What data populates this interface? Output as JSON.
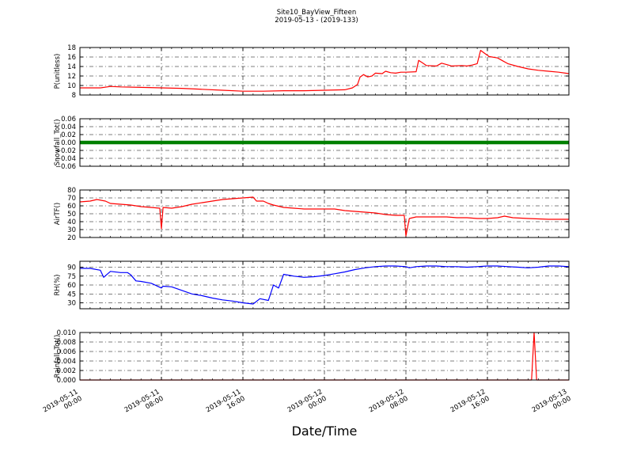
{
  "figure": {
    "title": "Site10_BayView_Fifteen",
    "subtitle": "2019-05-13 - (2019-133)",
    "xlabel": "Date/Time"
  },
  "chart_data": {
    "type": "line",
    "x_axis": {
      "kind": "datetime",
      "range": [
        "2019-05-11 00:00",
        "2019-05-13 00:00"
      ],
      "ticks": [
        "2019-05-11 00:00",
        "2019-05-11 08:00",
        "2019-05-11 16:00",
        "2019-05-12 00:00",
        "2019-05-12 08:00",
        "2019-05-12 16:00",
        "2019-05-13 00:00"
      ],
      "tick_labels": [
        [
          "2019-05-11",
          "00:00"
        ],
        [
          "2019-05-11",
          "08:00"
        ],
        [
          "2019-05-11",
          "16:00"
        ],
        [
          "2019-05-12",
          "00:00"
        ],
        [
          "2019-05-12",
          "08:00"
        ],
        [
          "2019-05-12",
          "16:00"
        ],
        [
          "2019-05-13",
          "00:00"
        ]
      ]
    },
    "grid": true,
    "panels": [
      {
        "ylabel": "P(unitless)",
        "ylim": [
          8,
          18
        ],
        "yticks": [
          "8",
          "10",
          "12",
          "14",
          "16",
          "18"
        ],
        "color": "#ff0000",
        "style": "line",
        "points": [
          [
            "2019-05-11 00:00",
            9.5
          ],
          [
            "2019-05-11 02:00",
            9.5
          ],
          [
            "2019-05-11 03:00",
            9.8
          ],
          [
            "2019-05-11 04:00",
            9.7
          ],
          [
            "2019-05-11 06:00",
            9.6
          ],
          [
            "2019-05-11 08:00",
            9.5
          ],
          [
            "2019-05-11 10:00",
            9.4
          ],
          [
            "2019-05-11 12:00",
            9.2
          ],
          [
            "2019-05-11 14:00",
            9.0
          ],
          [
            "2019-05-11 16:00",
            8.8
          ],
          [
            "2019-05-11 18:00",
            8.8
          ],
          [
            "2019-05-11 20:00",
            8.9
          ],
          [
            "2019-05-11 22:00",
            8.9
          ],
          [
            "2019-05-12 00:00",
            9.0
          ],
          [
            "2019-05-12 02:00",
            9.1
          ],
          [
            "2019-05-12 02:45",
            9.5
          ],
          [
            "2019-05-12 03:15",
            10.2
          ],
          [
            "2019-05-12 03:30",
            11.8
          ],
          [
            "2019-05-12 03:50",
            12.3
          ],
          [
            "2019-05-12 04:15",
            11.8
          ],
          [
            "2019-05-12 04:40",
            12.0
          ],
          [
            "2019-05-12 05:00",
            12.6
          ],
          [
            "2019-05-12 05:40",
            12.5
          ],
          [
            "2019-05-12 06:00",
            13.0
          ],
          [
            "2019-05-12 06:30",
            12.7
          ],
          [
            "2019-05-12 07:00",
            12.6
          ],
          [
            "2019-05-12 07:30",
            12.8
          ],
          [
            "2019-05-12 08:00",
            12.8
          ],
          [
            "2019-05-12 09:00",
            12.9
          ],
          [
            "2019-05-12 09:15",
            15.3
          ],
          [
            "2019-05-12 09:40",
            14.7
          ],
          [
            "2019-05-12 10:00",
            14.2
          ],
          [
            "2019-05-12 11:00",
            14.1
          ],
          [
            "2019-05-12 11:30",
            14.7
          ],
          [
            "2019-05-12 12:00",
            14.4
          ],
          [
            "2019-05-12 12:30",
            14.1
          ],
          [
            "2019-05-12 13:30",
            14.2
          ],
          [
            "2019-05-12 14:00",
            14.1
          ],
          [
            "2019-05-12 14:30",
            14.3
          ],
          [
            "2019-05-12 15:00",
            14.6
          ],
          [
            "2019-05-12 15:20",
            17.4
          ],
          [
            "2019-05-12 15:50",
            16.6
          ],
          [
            "2019-05-12 16:10",
            16.1
          ],
          [
            "2019-05-12 17:00",
            15.8
          ],
          [
            "2019-05-12 17:30",
            15.2
          ],
          [
            "2019-05-12 18:00",
            14.6
          ],
          [
            "2019-05-12 19:00",
            14.0
          ],
          [
            "2019-05-12 20:00",
            13.5
          ],
          [
            "2019-05-12 21:00",
            13.2
          ],
          [
            "2019-05-12 22:00",
            13.0
          ],
          [
            "2019-05-12 23:00",
            12.8
          ],
          [
            "2019-05-13 00:00",
            12.5
          ]
        ]
      },
      {
        "ylabel": "Snowfall_Tot()",
        "ylim": [
          -0.06,
          0.06
        ],
        "yticks": [
          "−0.06",
          "−0.04",
          "−0.02",
          "0.00",
          "0.02",
          "0.04",
          "0.06"
        ],
        "color": "#008000",
        "style": "thick",
        "points": [
          [
            "2019-05-11 00:00",
            0.0
          ],
          [
            "2019-05-13 00:00",
            0.0
          ]
        ]
      },
      {
        "ylabel": "AirTF()",
        "ylim": [
          20,
          80
        ],
        "yticks": [
          "20",
          "30",
          "40",
          "50",
          "60",
          "70",
          "80"
        ],
        "color": "#ff0000",
        "style": "line",
        "points": [
          [
            "2019-05-11 00:00",
            65
          ],
          [
            "2019-05-11 01:00",
            66
          ],
          [
            "2019-05-11 01:40",
            68
          ],
          [
            "2019-05-11 02:30",
            66
          ],
          [
            "2019-05-11 03:00",
            63
          ],
          [
            "2019-05-11 04:00",
            62
          ],
          [
            "2019-05-11 05:00",
            61
          ],
          [
            "2019-05-11 06:00",
            59
          ],
          [
            "2019-05-11 07:00",
            58
          ],
          [
            "2019-05-11 07:50",
            57
          ],
          [
            "2019-05-11 08:00",
            31
          ],
          [
            "2019-05-11 08:10",
            58
          ],
          [
            "2019-05-11 09:00",
            57
          ],
          [
            "2019-05-11 10:00",
            59
          ],
          [
            "2019-05-11 11:00",
            62
          ],
          [
            "2019-05-11 12:00",
            64
          ],
          [
            "2019-05-11 13:00",
            66
          ],
          [
            "2019-05-11 14:00",
            68
          ],
          [
            "2019-05-11 15:00",
            69
          ],
          [
            "2019-05-11 16:00",
            70
          ],
          [
            "2019-05-11 17:00",
            71
          ],
          [
            "2019-05-11 17:20",
            66
          ],
          [
            "2019-05-11 18:00",
            66
          ],
          [
            "2019-05-11 18:30",
            63
          ],
          [
            "2019-05-11 19:00",
            61
          ],
          [
            "2019-05-11 20:00",
            58
          ],
          [
            "2019-05-11 21:00",
            57
          ],
          [
            "2019-05-11 22:00",
            56
          ],
          [
            "2019-05-12 00:00",
            56
          ],
          [
            "2019-05-12 01:00",
            56
          ],
          [
            "2019-05-12 02:00",
            54
          ],
          [
            "2019-05-12 03:00",
            53
          ],
          [
            "2019-05-12 04:00",
            52
          ],
          [
            "2019-05-12 05:00",
            51
          ],
          [
            "2019-05-12 06:00",
            49
          ],
          [
            "2019-05-12 07:00",
            48
          ],
          [
            "2019-05-12 07:50",
            48
          ],
          [
            "2019-05-12 08:00",
            22
          ],
          [
            "2019-05-12 08:20",
            44
          ],
          [
            "2019-05-12 09:00",
            46
          ],
          [
            "2019-05-12 10:00",
            46
          ],
          [
            "2019-05-12 11:00",
            46
          ],
          [
            "2019-05-12 12:00",
            46
          ],
          [
            "2019-05-12 13:00",
            45
          ],
          [
            "2019-05-12 14:00",
            45
          ],
          [
            "2019-05-12 15:00",
            44
          ],
          [
            "2019-05-12 16:00",
            44
          ],
          [
            "2019-05-12 17:00",
            45
          ],
          [
            "2019-05-12 17:40",
            47
          ],
          [
            "2019-05-12 18:30",
            45
          ],
          [
            "2019-05-12 20:00",
            44
          ],
          [
            "2019-05-12 22:00",
            43
          ],
          [
            "2019-05-13 00:00",
            43
          ]
        ]
      },
      {
        "ylabel": "RH(%)",
        "ylim": [
          20,
          100
        ],
        "yticks": [
          "30",
          "45",
          "60",
          "75",
          "90"
        ],
        "color": "#0000ff",
        "style": "line",
        "points": [
          [
            "2019-05-11 00:00",
            88
          ],
          [
            "2019-05-11 01:00",
            88
          ],
          [
            "2019-05-11 02:00",
            85
          ],
          [
            "2019-05-11 02:20",
            73
          ],
          [
            "2019-05-11 03:00",
            83
          ],
          [
            "2019-05-11 04:00",
            81
          ],
          [
            "2019-05-11 04:40",
            81
          ],
          [
            "2019-05-11 05:00",
            77
          ],
          [
            "2019-05-11 05:30",
            67
          ],
          [
            "2019-05-11 06:00",
            66
          ],
          [
            "2019-05-11 07:00",
            63
          ],
          [
            "2019-05-11 07:30",
            59
          ],
          [
            "2019-05-11 08:00",
            55
          ],
          [
            "2019-05-11 08:10",
            58
          ],
          [
            "2019-05-11 09:00",
            57
          ],
          [
            "2019-05-11 10:00",
            51
          ],
          [
            "2019-05-11 11:00",
            45
          ],
          [
            "2019-05-11 12:00",
            42
          ],
          [
            "2019-05-11 13:00",
            38
          ],
          [
            "2019-05-11 14:00",
            35
          ],
          [
            "2019-05-11 15:00",
            33
          ],
          [
            "2019-05-11 16:00",
            30
          ],
          [
            "2019-05-11 17:00",
            28
          ],
          [
            "2019-05-11 17:40",
            37
          ],
          [
            "2019-05-11 18:30",
            34
          ],
          [
            "2019-05-11 19:00",
            60
          ],
          [
            "2019-05-11 19:30",
            55
          ],
          [
            "2019-05-11 20:00",
            78
          ],
          [
            "2019-05-11 21:00",
            75
          ],
          [
            "2019-05-11 22:00",
            73
          ],
          [
            "2019-05-11 23:00",
            74
          ],
          [
            "2019-05-12 00:00",
            76
          ],
          [
            "2019-05-12 01:00",
            79
          ],
          [
            "2019-05-12 02:00",
            82
          ],
          [
            "2019-05-12 03:00",
            86
          ],
          [
            "2019-05-12 04:00",
            89
          ],
          [
            "2019-05-12 05:00",
            91
          ],
          [
            "2019-05-12 06:00",
            92
          ],
          [
            "2019-05-12 07:00",
            92
          ],
          [
            "2019-05-12 08:00",
            91
          ],
          [
            "2019-05-12 08:20",
            89
          ],
          [
            "2019-05-12 09:00",
            91
          ],
          [
            "2019-05-12 10:00",
            92
          ],
          [
            "2019-05-12 11:00",
            92
          ],
          [
            "2019-05-12 12:00",
            91
          ],
          [
            "2019-05-12 13:00",
            91
          ],
          [
            "2019-05-12 14:00",
            90
          ],
          [
            "2019-05-12 15:00",
            91
          ],
          [
            "2019-05-12 16:00",
            92
          ],
          [
            "2019-05-12 17:00",
            92
          ],
          [
            "2019-05-12 18:00",
            91
          ],
          [
            "2019-05-12 19:00",
            90
          ],
          [
            "2019-05-12 20:00",
            89
          ],
          [
            "2019-05-12 21:00",
            90
          ],
          [
            "2019-05-12 22:00",
            92
          ],
          [
            "2019-05-12 23:00",
            92
          ],
          [
            "2019-05-13 00:00",
            91
          ]
        ]
      },
      {
        "ylabel": "Rainfall_Tot()",
        "ylim": [
          0,
          0.01
        ],
        "yticks": [
          "0.000",
          "0.002",
          "0.004",
          "0.006",
          "0.008",
          "0.010"
        ],
        "color": "#ff0000",
        "style": "line",
        "points": [
          [
            "2019-05-11 00:00",
            0.0
          ],
          [
            "2019-05-12 20:20",
            0.0
          ],
          [
            "2019-05-12 20:35",
            0.01
          ],
          [
            "2019-05-12 20:50",
            0.0
          ],
          [
            "2019-05-13 00:00",
            0.0
          ]
        ]
      }
    ]
  }
}
